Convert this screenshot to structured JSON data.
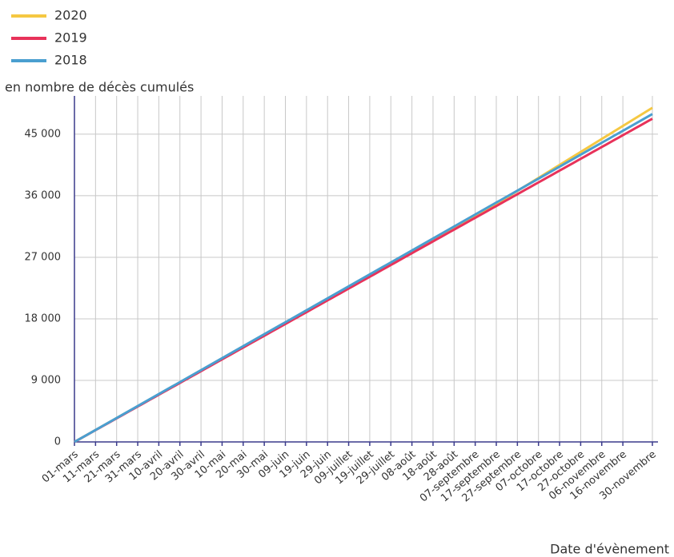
{
  "chart_data": {
    "type": "line",
    "y_label": "en nombre de décès cumulés",
    "x_label": "Date d'évènement",
    "ylim": [
      0,
      50600
    ],
    "yticks": [
      0,
      {
        "value": 9000,
        "label": "9 000"
      },
      {
        "value": 18000,
        "label": "18 000"
      },
      {
        "value": 27000,
        "label": "27 000"
      },
      {
        "value": 36000,
        "label": "36 000"
      },
      {
        "value": 45000,
        "label": "45 000"
      }
    ],
    "grid": true,
    "legend": "top-left",
    "categories": [
      "01-mars",
      null,
      null,
      null,
      null,
      "11-mars",
      null,
      null,
      null,
      null,
      "21-mars",
      null,
      null,
      null,
      null,
      "31-mars",
      null,
      null,
      null,
      null,
      "10-avril",
      null,
      null,
      null,
      null,
      "20-avril",
      null,
      null,
      null,
      null,
      "30-avril",
      null,
      null,
      null,
      null,
      "10-mai",
      null,
      null,
      null,
      null,
      "20-mai",
      null,
      null,
      null,
      null,
      "30-mai",
      null,
      null,
      null,
      null,
      "09-juin",
      null,
      null,
      null,
      null,
      "19-juin",
      null,
      null,
      null,
      null,
      "29-juin",
      null,
      null,
      null,
      null,
      "09-juillet",
      null,
      null,
      null,
      null,
      "19-juillet",
      null,
      null,
      null,
      null,
      "29-juillet",
      null,
      null,
      null,
      null,
      "08-août",
      null,
      null,
      null,
      null,
      "18-août",
      null,
      null,
      null,
      null,
      "28-août",
      null,
      null,
      null,
      null,
      "07-septembre",
      null,
      null,
      null,
      null,
      "17-septembre",
      null,
      null,
      null,
      null,
      "27-septembre",
      null,
      null,
      null,
      null,
      "07-octobre",
      null,
      null,
      null,
      null,
      "17-octobre",
      null,
      null,
      null,
      null,
      "27-octobre",
      null,
      null,
      null,
      null,
      "06-novembre",
      null,
      null,
      null,
      null,
      "16-novembre",
      null,
      null,
      null,
      null,
      null,
      null,
      "30-novembre"
    ],
    "series": [
      {
        "name": "2020",
        "color": "#f5c842",
        "values": [
          0,
          348,
          696,
          1044,
          1392,
          1740,
          2088,
          2436,
          2784,
          3132,
          3480,
          3828,
          4176,
          4524,
          4872,
          5220,
          5568,
          5916,
          6264,
          6612,
          6960,
          7308,
          7656,
          8004,
          8352,
          8700,
          9048,
          9396,
          9744,
          10092,
          10440,
          10788,
          11136,
          11484,
          11832,
          12180,
          12528,
          12876,
          13224,
          13572,
          13920,
          14268,
          14616,
          14964,
          15312,
          15660,
          16008,
          16356,
          16704,
          17052,
          17400,
          17748,
          18096,
          18444,
          18792,
          19140,
          19488,
          19836,
          20184,
          20532,
          20880,
          21228,
          21576,
          21924,
          22272,
          22620,
          22968,
          23316,
          23664,
          24012,
          24360,
          24708,
          25056,
          25404,
          25752,
          26100,
          26448,
          26796,
          27144,
          27492,
          27840,
          28188,
          28536,
          28884,
          29232,
          29580,
          29928,
          30276,
          30624,
          30972,
          31320,
          31668,
          32016,
          32364,
          32712,
          33060,
          33408,
          33756,
          34104,
          34452,
          34800,
          35180,
          35560,
          35940,
          36320,
          36700,
          37080,
          37460,
          37840,
          38220,
          38600,
          38980,
          39360,
          39740,
          40120,
          40500,
          40880,
          41260,
          41640,
          42020,
          42400,
          42780,
          43160,
          43540,
          43920,
          44300,
          44680,
          45060,
          45440,
          45820,
          46200,
          46580,
          46960,
          47340,
          47720,
          48100,
          48480,
          48860
        ]
      },
      {
        "name": "2019",
        "color": "#e8325a",
        "values": [
          0,
          345,
          690,
          1035,
          1380,
          1725,
          2070,
          2415,
          2760,
          3105,
          3450,
          3795,
          4140,
          4485,
          4830,
          5175,
          5520,
          5865,
          6210,
          6555,
          6900,
          7245,
          7590,
          7935,
          8280,
          8625,
          8970,
          9315,
          9660,
          10005,
          10350,
          10695,
          11040,
          11385,
          11730,
          12075,
          12420,
          12765,
          13110,
          13455,
          13800,
          14145,
          14490,
          14835,
          15180,
          15525,
          15870,
          16215,
          16560,
          16905,
          17250,
          17595,
          17940,
          18285,
          18630,
          18975,
          19320,
          19665,
          20010,
          20355,
          20700,
          21045,
          21390,
          21735,
          22080,
          22425,
          22770,
          23115,
          23460,
          23805,
          24150,
          24495,
          24840,
          25185,
          25530,
          25875,
          26220,
          26565,
          26910,
          27255,
          27600,
          27945,
          28290,
          28635,
          28980,
          29325,
          29670,
          30015,
          30360,
          30705,
          31050,
          31395,
          31740,
          32085,
          32430,
          32775,
          33120,
          33465,
          33810,
          34155,
          34500,
          34845,
          35190,
          35535,
          35880,
          36225,
          36570,
          36915,
          37260,
          37605,
          37950,
          38295,
          38640,
          38985,
          39330,
          39675,
          40020,
          40365,
          40710,
          41055,
          41400,
          41745,
          42090,
          42435,
          42780,
          43125,
          43470,
          43815,
          44160,
          44505,
          44850,
          45195,
          45540,
          45885,
          46230,
          46575,
          46920,
          47265
        ]
      },
      {
        "name": "2018",
        "color": "#4a9fd0",
        "values": [
          0,
          350,
          700,
          1050,
          1400,
          1750,
          2100,
          2450,
          2800,
          3150,
          3500,
          3850,
          4200,
          4550,
          4900,
          5250,
          5600,
          5950,
          6300,
          6650,
          7000,
          7350,
          7700,
          8050,
          8400,
          8750,
          9100,
          9450,
          9800,
          10150,
          10500,
          10850,
          11200,
          11550,
          11900,
          12250,
          12600,
          12950,
          13300,
          13650,
          14000,
          14350,
          14700,
          15050,
          15400,
          15750,
          16100,
          16450,
          16800,
          17150,
          17500,
          17850,
          18200,
          18550,
          18900,
          19250,
          19600,
          19950,
          20300,
          20650,
          21000,
          21350,
          21700,
          22050,
          22400,
          22750,
          23100,
          23450,
          23800,
          24150,
          24500,
          24850,
          25200,
          25550,
          25900,
          26250,
          26600,
          26950,
          27300,
          27650,
          28000,
          28350,
          28700,
          29050,
          29400,
          29750,
          30100,
          30450,
          30800,
          31150,
          31500,
          31850,
          32200,
          32550,
          32900,
          33250,
          33600,
          33950,
          34300,
          34650,
          35000,
          35350,
          35700,
          36050,
          36400,
          36750,
          37100,
          37450,
          37800,
          38150,
          38500,
          38850,
          39200,
          39550,
          39900,
          40250,
          40600,
          40950,
          41300,
          41650,
          42000,
          42350,
          42700,
          43050,
          43400,
          43750,
          44100,
          44450,
          44800,
          45150,
          45500,
          45850,
          46200,
          46550,
          46900,
          47250,
          47600,
          47950
        ]
      }
    ]
  }
}
